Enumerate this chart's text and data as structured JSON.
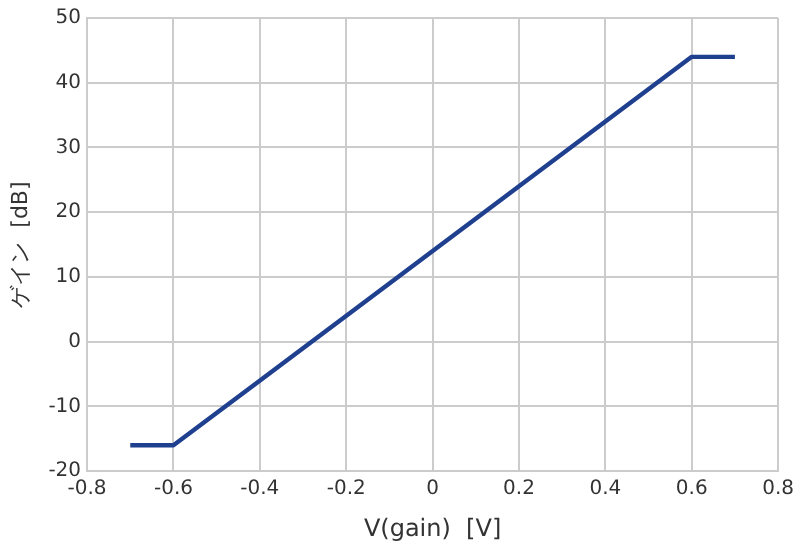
{
  "chart_data": {
    "type": "line",
    "xlabel": "V(gain)  [V]",
    "ylabel": "ゲイン  [dB]",
    "series": [
      {
        "color": "#1f3f8f",
        "x": [
          -0.7,
          -0.6,
          0.6,
          0.7
        ],
        "values": [
          -16,
          -16,
          44,
          44
        ]
      }
    ],
    "xlim": [
      -0.8,
      0.8
    ],
    "xticks": [
      -0.8,
      -0.6,
      -0.4,
      -0.2,
      0,
      0.2,
      0.4,
      0.6,
      0.8
    ],
    "ylim": [
      -20,
      50
    ],
    "yticks": [
      -20,
      -10,
      0,
      10,
      20,
      30,
      40,
      50
    ],
    "grid": true,
    "legend": false,
    "marker": "none",
    "line_style": "solid"
  }
}
